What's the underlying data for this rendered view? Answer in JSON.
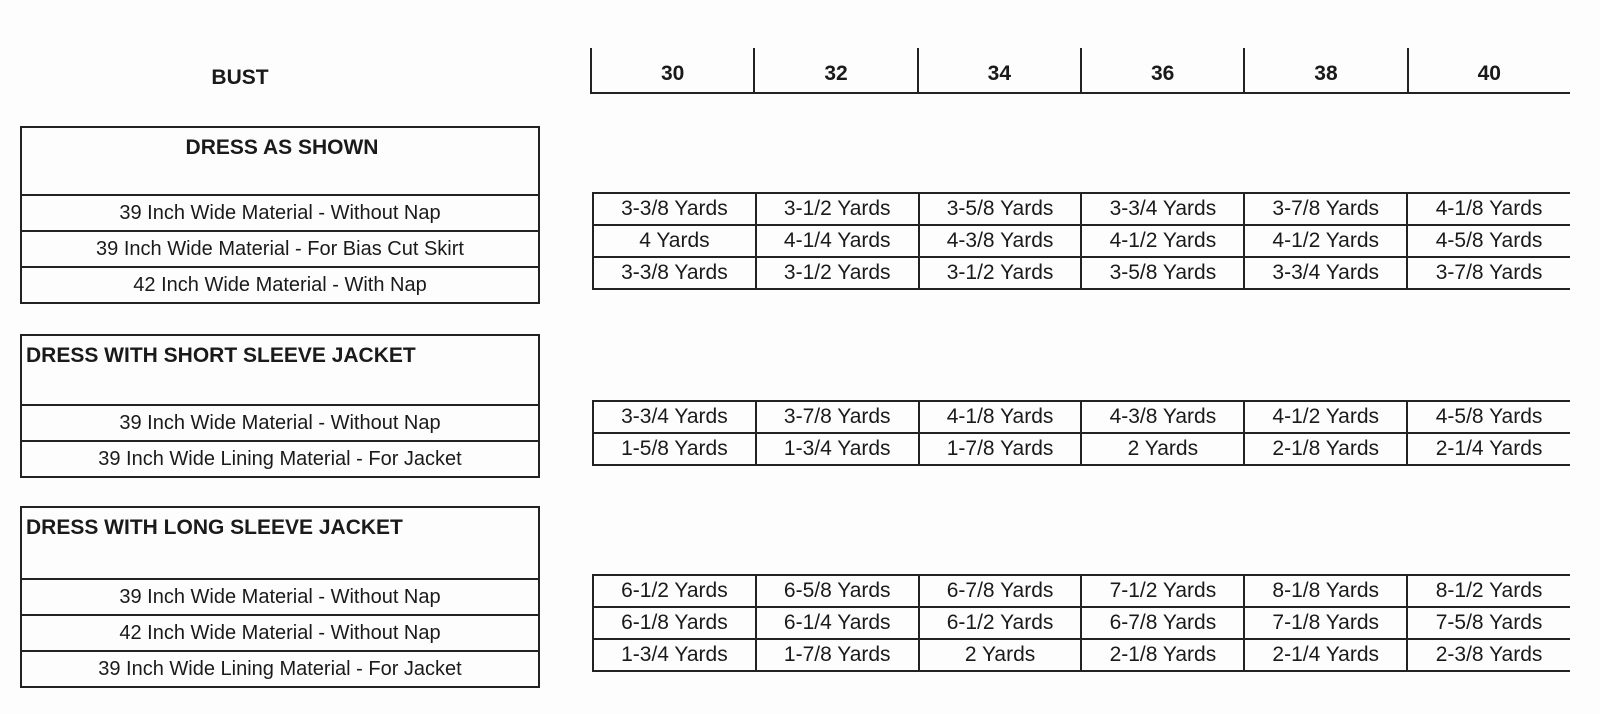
{
  "bust_label": "BUST",
  "sizes": [
    "30",
    "32",
    "34",
    "36",
    "38",
    "40"
  ],
  "sections": [
    {
      "title": "DRESS AS SHOWN",
      "rows": [
        {
          "label": "39 Inch Wide Material - Without Nap",
          "values": [
            "3-3/8 Yards",
            "3-1/2 Yards",
            "3-5/8 Yards",
            "3-3/4 Yards",
            "3-7/8 Yards",
            "4-1/8 Yards"
          ]
        },
        {
          "label": "39 Inch Wide Material - For Bias Cut Skirt",
          "values": [
            "4 Yards",
            "4-1/4 Yards",
            "4-3/8 Yards",
            "4-1/2 Yards",
            "4-1/2 Yards",
            "4-5/8 Yards"
          ]
        },
        {
          "label": "42 Inch Wide Material - With Nap",
          "values": [
            "3-3/8 Yards",
            "3-1/2 Yards",
            "3-1/2 Yards",
            "3-5/8 Yards",
            "3-3/4 Yards",
            "3-7/8 Yards"
          ]
        }
      ]
    },
    {
      "title": "DRESS WITH SHORT SLEEVE JACKET",
      "rows": [
        {
          "label": "39 Inch Wide Material - Without Nap",
          "values": [
            "3-3/4 Yards",
            "3-7/8 Yards",
            "4-1/8 Yards",
            "4-3/8 Yards",
            "4-1/2 Yards",
            "4-5/8 Yards"
          ]
        },
        {
          "label": "39 Inch Wide Lining Material - For Jacket",
          "values": [
            "1-5/8 Yards",
            "1-3/4 Yards",
            "1-7/8 Yards",
            "2 Yards",
            "2-1/8 Yards",
            "2-1/4 Yards"
          ]
        }
      ]
    },
    {
      "title": "DRESS WITH LONG SLEEVE JACKET",
      "rows": [
        {
          "label": "39 Inch Wide Material - Without Nap",
          "values": [
            "6-1/2 Yards",
            "6-5/8 Yards",
            "6-7/8 Yards",
            "7-1/2 Yards",
            "8-1/8 Yards",
            "8-1/2 Yards"
          ]
        },
        {
          "label": "42 Inch Wide Material - Without Nap",
          "values": [
            "6-1/8 Yards",
            "6-1/4 Yards",
            "6-1/2 Yards",
            "6-7/8 Yards",
            "7-1/8 Yards",
            "7-5/8 Yards"
          ]
        },
        {
          "label": "39 Inch Wide Lining Material - For Jacket",
          "values": [
            "1-3/4 Yards",
            "1-7/8 Yards",
            "2 Yards",
            "2-1/8 Yards",
            "2-1/4 Yards",
            "2-3/8 Yards"
          ]
        }
      ]
    }
  ]
}
